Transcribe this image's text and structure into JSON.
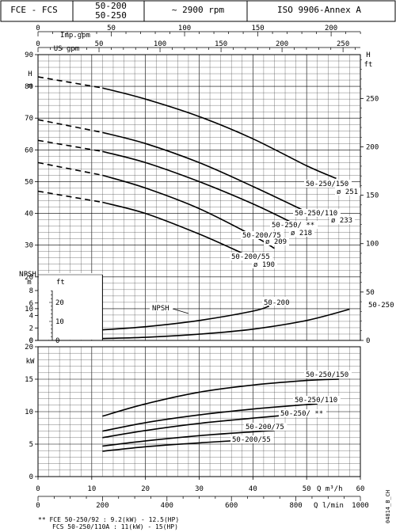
{
  "header": {
    "series": "FCE - FCS",
    "models": [
      "50-200",
      "50-250"
    ],
    "speed": "~ 2900 rpm",
    "standard": "ISO 9906-Annex A"
  },
  "footer": {
    "line1": "** FCE 50-250/92   : 9.2(kW) - 12.5(HP)",
    "line2": "FCS 50-250/110A : 11(kW) - 15(HP)",
    "code": "04814_B_CH"
  },
  "chart_data": [
    {
      "type": "line",
      "panel": "head",
      "ylabel_left": "H m",
      "ylabel_right": "H ft",
      "xlabel_top1": "Imp.gpm",
      "xlabel_top2": "US gpm",
      "ylim": [
        0,
        90
      ],
      "xlim": [
        0,
        60
      ],
      "grid": true,
      "series": [
        {
          "name": "50-250/150",
          "diameter": "ø 251",
          "x": [
            0,
            12,
            20,
            30,
            40,
            50,
            55.5
          ],
          "y": [
            83,
            79.5,
            76,
            70.5,
            63.5,
            55,
            51
          ]
        },
        {
          "name": "50-250/110",
          "diameter": "ø 233",
          "x": [
            0,
            12,
            20,
            30,
            40,
            50,
            52
          ],
          "y": [
            69.5,
            65.5,
            62,
            56,
            48.5,
            40.5,
            39
          ]
        },
        {
          "name": "50-250/ **",
          "diameter": "ø 218",
          "x": [
            0,
            12,
            20,
            30,
            40,
            48
          ],
          "y": [
            63,
            59.5,
            56,
            50,
            43,
            36.5
          ]
        },
        {
          "name": "50-200/75",
          "diameter": "ø 209",
          "x": [
            0,
            12,
            20,
            30,
            40,
            44
          ],
          "y": [
            56,
            52,
            48,
            41.5,
            33,
            29
          ]
        },
        {
          "name": "50-200/55",
          "diameter": "ø 190",
          "x": [
            0,
            12,
            20,
            30,
            38
          ],
          "y": [
            47,
            43.5,
            40,
            33.5,
            27.5
          ]
        }
      ]
    },
    {
      "type": "line",
      "panel": "npsh",
      "label": "NPSH",
      "ylabel_left": "NPSH m",
      "ylabel_right": "ft",
      "ylim": [
        0,
        8
      ],
      "series": [
        {
          "name": "50-200",
          "x": [
            12,
            20,
            30,
            40,
            43
          ],
          "y": [
            1.7,
            2.2,
            3.2,
            4.7,
            5.5
          ]
        },
        {
          "name": "50-250",
          "x": [
            12,
            20,
            30,
            40,
            50,
            58
          ],
          "y": [
            0.3,
            0.5,
            1.0,
            1.8,
            3.2,
            5.0
          ]
        }
      ]
    },
    {
      "type": "line",
      "panel": "power",
      "ylabel_left": "kW",
      "ylim": [
        0,
        20
      ],
      "xlabel_bottom1": "Q m³/h",
      "xlabel_bottom2": "Q l/min",
      "series": [
        {
          "name": "50-250/150",
          "x": [
            12,
            20,
            30,
            40,
            50,
            56
          ],
          "y": [
            9.3,
            11.2,
            13,
            14.1,
            14.8,
            15
          ]
        },
        {
          "name": "50-250/110",
          "x": [
            12,
            20,
            30,
            40,
            50,
            52
          ],
          "y": [
            7,
            8.3,
            9.5,
            10.4,
            11.1,
            11.2
          ]
        },
        {
          "name": "50-250/ **",
          "x": [
            12,
            20,
            30,
            40,
            48
          ],
          "y": [
            6,
            7.1,
            8.2,
            9,
            9.6
          ]
        },
        {
          "name": "50-200/75",
          "x": [
            12,
            20,
            30,
            40,
            44
          ],
          "y": [
            4.7,
            5.5,
            6.3,
            6.9,
            7.1
          ]
        },
        {
          "name": "50-200/55",
          "x": [
            12,
            20,
            30,
            38
          ],
          "y": [
            3.9,
            4.6,
            5.2,
            5.6
          ]
        }
      ]
    }
  ],
  "axes": {
    "top_imp": {
      "label": "Imp.gpm",
      "ticks": [
        "0",
        "50",
        "100",
        "150",
        "200"
      ]
    },
    "top_us": {
      "label": "US gpm",
      "ticks": [
        "0",
        "50",
        "100",
        "150",
        "200",
        "250"
      ]
    },
    "left_h": {
      "label1": "H",
      "label2": "m",
      "ticks": [
        "0",
        "10",
        "20",
        "30",
        "40",
        "50",
        "60",
        "70",
        "80",
        "90"
      ]
    },
    "right_h": {
      "label1": "H",
      "label2": "ft",
      "ticks": [
        "0",
        "50",
        "100",
        "150",
        "200",
        "250"
      ]
    },
    "npsh_left": {
      "label1": "NPSH",
      "label2": "m",
      "ticks": [
        "0",
        "2",
        "4",
        "6",
        "8"
      ]
    },
    "npsh_right": {
      "label": "ft",
      "ticks": [
        "0",
        "10",
        "20"
      ]
    },
    "kw": {
      "label": "kW",
      "ticks": [
        "0",
        "5",
        "10",
        "15",
        "20"
      ]
    },
    "q_m3h": {
      "label": "Q m³/h",
      "ticks": [
        "0",
        "10",
        "20",
        "30",
        "40",
        "50",
        "60"
      ]
    },
    "q_lmin": {
      "label": "Q l/min",
      "ticks": [
        "0",
        "200",
        "400",
        "600",
        "800",
        "1000"
      ]
    }
  }
}
